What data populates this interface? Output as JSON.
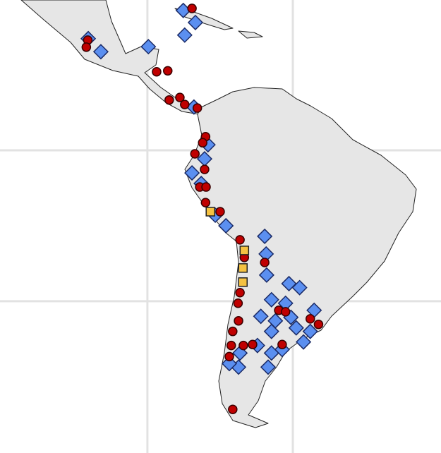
{
  "map": {
    "graticule": {
      "lon": [
        -90,
        -60
      ],
      "lat": [
        0,
        -30
      ],
      "color": "#e2e2e2"
    },
    "series": [
      {
        "marker": "diamond",
        "color": "#5b8ff0",
        "stroke": "#1a2a66",
        "points": [
          [
            -82.6,
            27.8
          ],
          [
            -80.1,
            25.4
          ],
          [
            -82.3,
            22.9
          ],
          [
            -99.6,
            19.6
          ],
          [
            -89.8,
            20.6
          ],
          [
            -102.2,
            22.2
          ],
          [
            -80.4,
            8.6
          ],
          [
            -77.5,
            1.1
          ],
          [
            -78.2,
            -1.7
          ],
          [
            -80.8,
            -4.5
          ],
          [
            -78.9,
            -6.6
          ],
          [
            -76.0,
            -12.9
          ],
          [
            -73.8,
            -15.0
          ],
          [
            -65.8,
            -17.1
          ],
          [
            -65.5,
            -20.6
          ],
          [
            -65.4,
            -24.8
          ],
          [
            -60.8,
            -26.5
          ],
          [
            -58.6,
            -27.3
          ],
          [
            -64.4,
            -29.7
          ],
          [
            -61.5,
            -30.4
          ],
          [
            -66.6,
            -33.0
          ],
          [
            -63.6,
            -33.9
          ],
          [
            -60.4,
            -33.2
          ],
          [
            -64.4,
            -36.0
          ],
          [
            -59.3,
            -35.3
          ],
          [
            -56.4,
            -36.0
          ],
          [
            -57.8,
            -38.1
          ],
          [
            -55.6,
            -31.8
          ],
          [
            -62.2,
            -39.6
          ],
          [
            -67.3,
            -38.8
          ],
          [
            -70.9,
            -40.3
          ],
          [
            -71.2,
            -43.1
          ],
          [
            -65.1,
            -43.1
          ],
          [
            -73.1,
            -42.4
          ],
          [
            -64.4,
            -40.3
          ]
        ]
      },
      {
        "marker": "circle",
        "color": "#c00000",
        "stroke": "#3a0000",
        "points": [
          [
            -80.8,
            28.2
          ],
          [
            -102.3,
            21.9
          ],
          [
            -102.6,
            20.5
          ],
          [
            -88.1,
            15.6
          ],
          [
            -85.8,
            15.8
          ],
          [
            -85.5,
            10.0
          ],
          [
            -83.3,
            10.5
          ],
          [
            -82.3,
            9.1
          ],
          [
            -79.7,
            8.4
          ],
          [
            -78.0,
            2.7
          ],
          [
            -78.6,
            1.5
          ],
          [
            -80.2,
            -0.7
          ],
          [
            -78.2,
            -3.8
          ],
          [
            -79.2,
            -7.3
          ],
          [
            -77.9,
            -7.3
          ],
          [
            -78.0,
            -10.4
          ],
          [
            -75.0,
            -12.2
          ],
          [
            -70.9,
            -17.8
          ],
          [
            -70.0,
            -21.3
          ],
          [
            -65.8,
            -22.3
          ],
          [
            -70.9,
            -28.3
          ],
          [
            -71.3,
            -30.4
          ],
          [
            -71.2,
            -33.9
          ],
          [
            -72.4,
            -36.0
          ],
          [
            -72.7,
            -38.8
          ],
          [
            -73.1,
            -41.0
          ],
          [
            -70.2,
            -38.8
          ],
          [
            -68.3,
            -38.6
          ],
          [
            -62.9,
            -31.8
          ],
          [
            -61.5,
            -32.1
          ],
          [
            -56.4,
            -33.5
          ],
          [
            -54.7,
            -34.6
          ],
          [
            -62.2,
            -38.6
          ],
          [
            -72.4,
            -51.5
          ]
        ]
      },
      {
        "marker": "square",
        "color": "#f5c242",
        "stroke": "#222222",
        "points": [
          [
            -77.0,
            -12.2
          ],
          [
            -70.0,
            -19.9
          ],
          [
            -70.3,
            -23.4
          ],
          [
            -70.3,
            -26.2
          ]
        ]
      }
    ]
  }
}
